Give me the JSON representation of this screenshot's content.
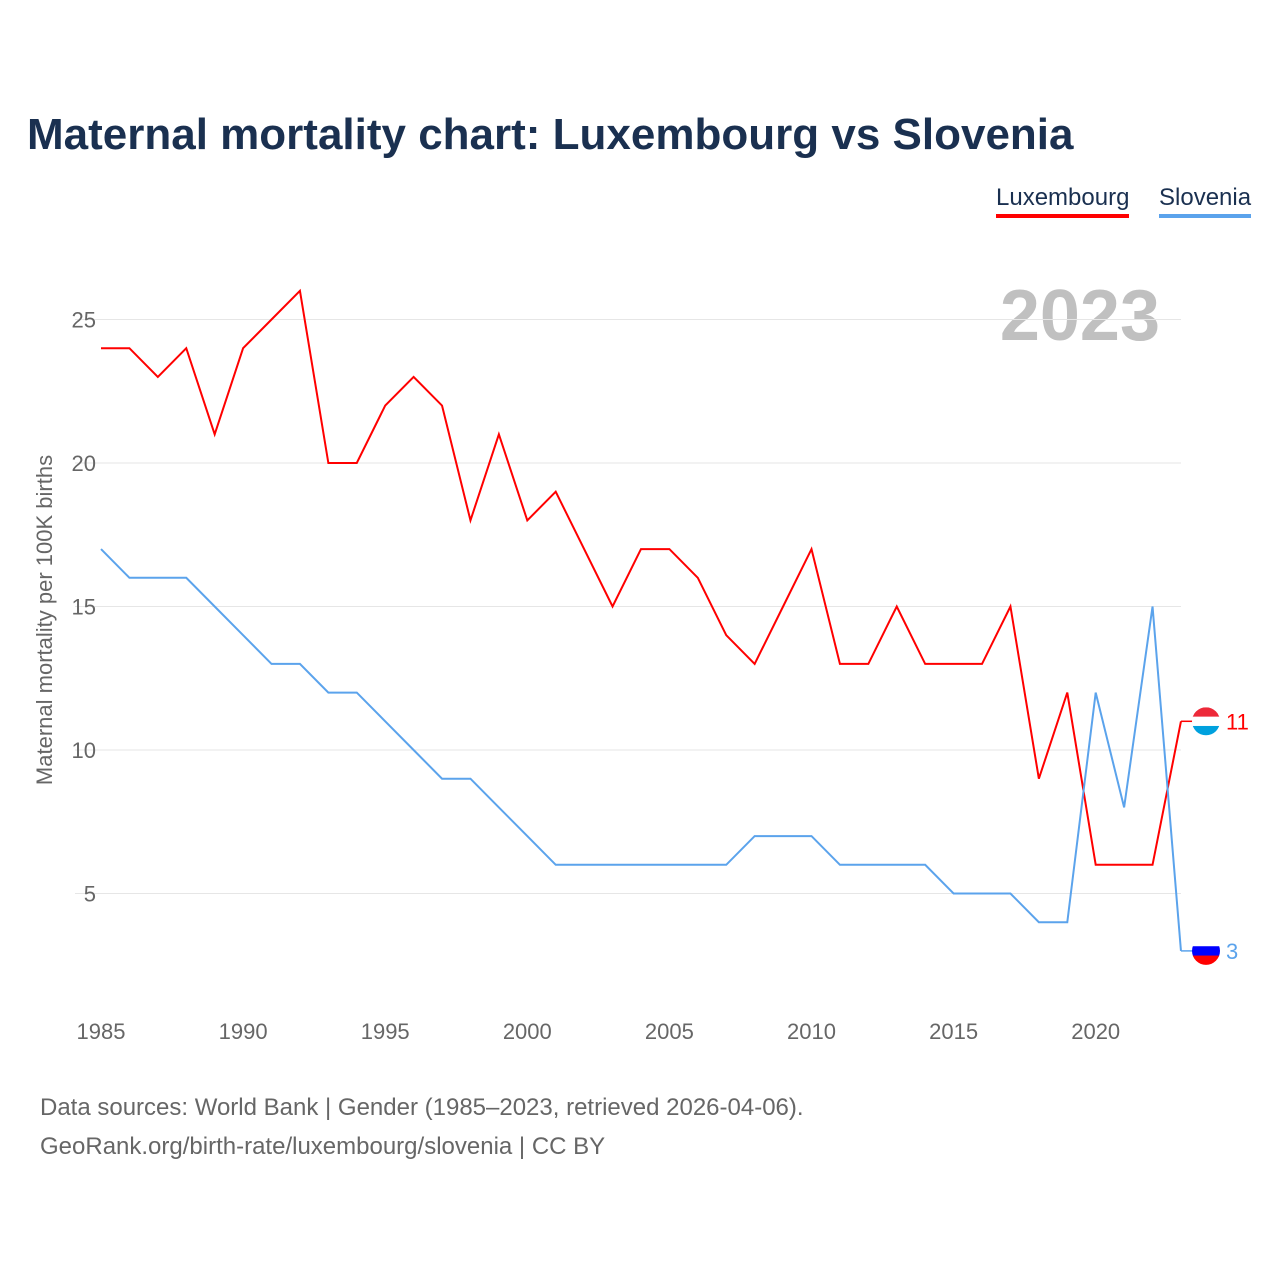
{
  "chart_data": {
    "type": "line",
    "title": "Maternal mortality chart: Luxembourg vs Slovenia",
    "ylabel": "Maternal mortality per 100K births",
    "xlabel": "",
    "year_label": "2023",
    "ylim": [
      0,
      28
    ],
    "xlim": [
      1985,
      2023
    ],
    "yticks": [
      5,
      10,
      15,
      20,
      25
    ],
    "xticks": [
      1985,
      1990,
      1995,
      2000,
      2005,
      2010,
      2015,
      2020
    ],
    "grid": true,
    "legend_position": "top-right",
    "x": [
      1985,
      1986,
      1987,
      1988,
      1989,
      1990,
      1991,
      1992,
      1993,
      1994,
      1995,
      1996,
      1997,
      1998,
      1999,
      2000,
      2001,
      2002,
      2003,
      2004,
      2005,
      2006,
      2007,
      2008,
      2009,
      2010,
      2011,
      2012,
      2013,
      2014,
      2015,
      2016,
      2017,
      2018,
      2019,
      2020,
      2021,
      2022,
      2023
    ],
    "series": [
      {
        "name": "Luxembourg",
        "color": "#ff0000",
        "end_label": "11",
        "values": [
          24,
          24,
          23,
          24,
          21,
          24,
          25,
          26,
          20,
          20,
          22,
          23,
          22,
          18,
          21,
          18,
          19,
          17,
          15,
          17,
          17,
          16,
          14,
          13,
          15,
          17,
          13,
          13,
          15,
          13,
          13,
          13,
          15,
          9,
          12,
          6,
          6,
          6,
          11
        ]
      },
      {
        "name": "Slovenia",
        "color": "#5ba3ec",
        "end_label": "3",
        "values": [
          17,
          16,
          16,
          16,
          15,
          14,
          13,
          13,
          12,
          12,
          11,
          10,
          9,
          9,
          8,
          7,
          6,
          6,
          6,
          6,
          6,
          6,
          6,
          7,
          7,
          7,
          6,
          6,
          6,
          6,
          5,
          5,
          5,
          4,
          4,
          12,
          8,
          15,
          3
        ]
      }
    ]
  },
  "source": {
    "line1": "Data sources: World Bank | Gender (1985–2023, retrieved 2026-04-06).",
    "line2": "GeoRank.org/birth-rate/luxembourg/slovenia | CC BY"
  }
}
